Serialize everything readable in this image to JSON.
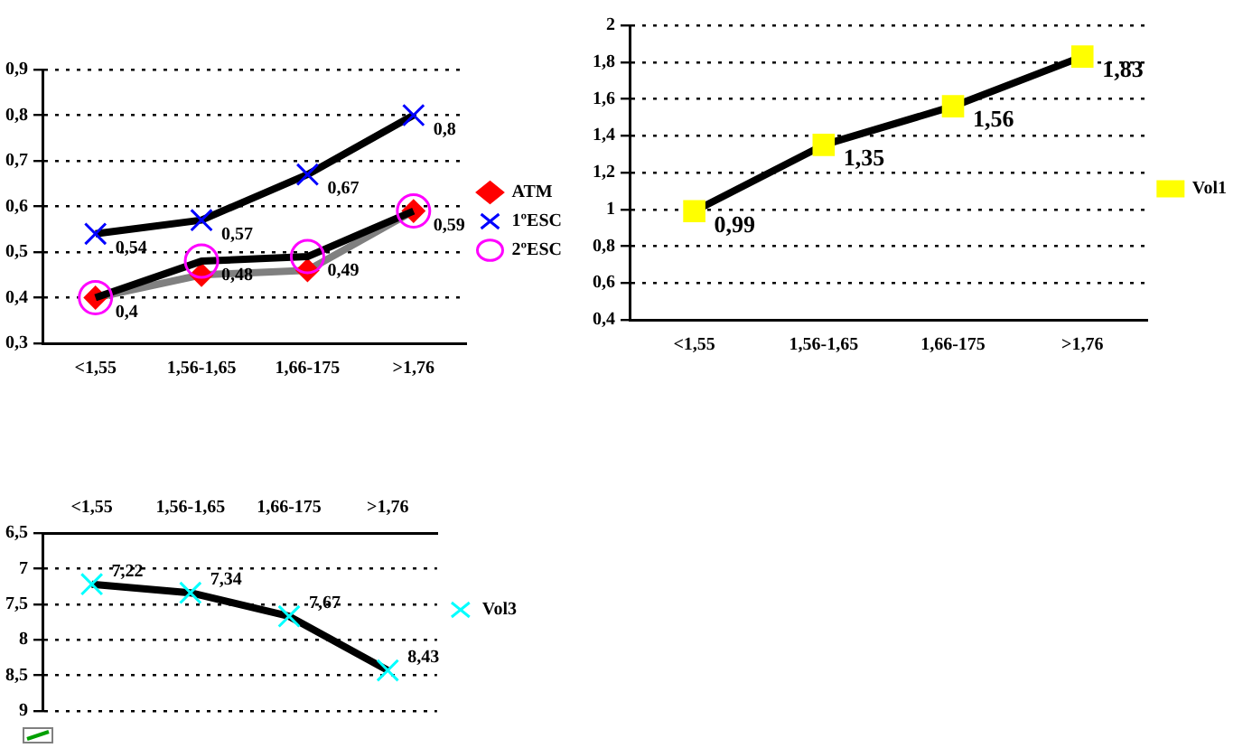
{
  "chart_data": [
    {
      "type": "line",
      "categories": [
        "<1,55",
        "1,56-1,65",
        "1,66-175",
        ">1,76"
      ],
      "ylim": [
        0.3,
        0.9
      ],
      "yticks": [
        {
          "value": 0.3,
          "label": "0,3"
        },
        {
          "value": 0.4,
          "label": "0,4"
        },
        {
          "value": 0.5,
          "label": "0,5"
        },
        {
          "value": 0.6,
          "label": "0,6"
        },
        {
          "value": 0.7,
          "label": "0,7"
        },
        {
          "value": 0.8,
          "label": "0,8"
        },
        {
          "value": 0.9,
          "label": "0,9"
        }
      ],
      "grid": "y",
      "legend": "right",
      "line_style": "solid",
      "series": [
        {
          "name": "ATM",
          "color": "#808080",
          "colors": [
            "#ff0000",
            "#ff0000",
            "#ff0000",
            "#ff0000"
          ],
          "marker": "diamond",
          "values": [
            0.4,
            0.45,
            0.46,
            0.59
          ]
        },
        {
          "name": "1ºESC",
          "color": "#000000",
          "colors": [
            "#0000ff",
            "#0000ff",
            "#0000ff",
            "#0000ff"
          ],
          "marker": "cross",
          "values": [
            0.54,
            0.57,
            0.67,
            0.8
          ],
          "value_labels": [
            "0,54",
            "0,57",
            "0,67",
            "0,8"
          ]
        },
        {
          "name": "2ºESC",
          "color": "#000000",
          "colors": [
            "#ff00ff",
            "#ff00ff",
            "#ff00ff",
            "#ff00ff"
          ],
          "marker": "circle",
          "values": [
            0.4,
            0.48,
            0.49,
            0.59
          ],
          "value_labels": [
            "0,4",
            "0,48",
            "0,49",
            "0,59"
          ]
        }
      ]
    },
    {
      "type": "line",
      "categories": [
        "<1,55",
        "1,56-1,65",
        "1,66-175",
        ">1,76"
      ],
      "ylim": [
        0.4,
        2
      ],
      "yticks": [
        {
          "value": 0.4,
          "label": "0,4"
        },
        {
          "value": 0.6,
          "label": "0,6"
        },
        {
          "value": 0.8,
          "label": "0,8"
        },
        {
          "value": 1,
          "label": "1"
        },
        {
          "value": 1.2,
          "label": "1,2"
        },
        {
          "value": 1.4,
          "label": "1,4"
        },
        {
          "value": 1.6,
          "label": "1,6"
        },
        {
          "value": 1.8,
          "label": "1,8"
        },
        {
          "value": 2,
          "label": "2"
        }
      ],
      "grid": "y",
      "legend": "right",
      "line_style": "solid",
      "series": [
        {
          "name": "Vol1",
          "color": "#000000",
          "colors": [
            "#ffff00",
            "#ffff00",
            "#ffff00",
            "#ffff00"
          ],
          "marker": "square",
          "values": [
            0.99,
            1.35,
            1.56,
            1.83
          ],
          "value_labels": [
            "0,99",
            "1,35",
            "1,56",
            "1,83"
          ]
        }
      ]
    },
    {
      "type": "line",
      "categories": [
        "<1,55",
        "1,56-1,65",
        "1,66-175",
        ">1,76"
      ],
      "ylim": [
        9,
        6.5
      ],
      "yticks": [
        {
          "value": 6.5,
          "label": "6,5"
        },
        {
          "value": 7,
          "label": "7"
        },
        {
          "value": 7.5,
          "label": "7,5"
        },
        {
          "value": 8,
          "label": "8"
        },
        {
          "value": 8.5,
          "label": "8,5"
        },
        {
          "value": 9,
          "label": "9"
        }
      ],
      "grid": "y",
      "legend": "right",
      "line_style": "solid",
      "series": [
        {
          "name": "Vol3",
          "color": "#000000",
          "colors": [
            "#00ffff",
            "#00ffff",
            "#00ffff",
            "#00ffff"
          ],
          "marker": "cross",
          "values": [
            7.22,
            7.34,
            7.67,
            8.43
          ],
          "value_labels": [
            "7,22",
            "7,34",
            "7,67",
            "8,43"
          ]
        }
      ]
    }
  ]
}
